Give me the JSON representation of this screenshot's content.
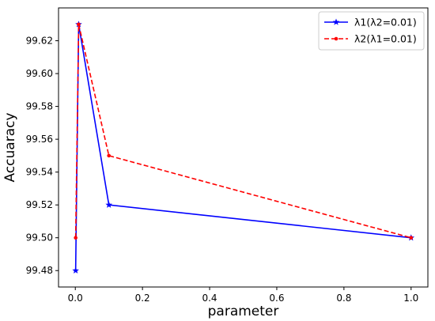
{
  "chart_data": {
    "type": "line",
    "title": "",
    "xlabel": "parameter",
    "ylabel": "Accuaracy",
    "xlim": [
      -0.05,
      1.05
    ],
    "ylim": [
      99.47,
      99.64
    ],
    "xticks": [
      0.0,
      0.2,
      0.4,
      0.6,
      0.8,
      1.0
    ],
    "xtick_labels": [
      "0.0",
      "0.2",
      "0.4",
      "0.6",
      "0.8",
      "1.0"
    ],
    "yticks": [
      99.48,
      99.5,
      99.52,
      99.54,
      99.56,
      99.58,
      99.6,
      99.62
    ],
    "ytick_labels": [
      "99.48",
      "99.50",
      "99.52",
      "99.54",
      "99.56",
      "99.58",
      "99.60",
      "99.62"
    ],
    "grid": false,
    "legend_position": "top-right",
    "series": [
      {
        "name": "λ1(λ2=0.01)",
        "color": "#0000ff",
        "line_style": "solid",
        "marker": "star",
        "x": [
          0.001,
          0.01,
          0.1,
          1.0
        ],
        "y": [
          99.48,
          99.63,
          99.52,
          99.5
        ]
      },
      {
        "name": "λ2(λ1=0.01)",
        "color": "#ff0000",
        "line_style": "dashed",
        "marker": "dot",
        "x": [
          0.001,
          0.01,
          0.1,
          1.0
        ],
        "y": [
          99.5,
          99.63,
          99.55,
          99.5
        ]
      }
    ]
  }
}
